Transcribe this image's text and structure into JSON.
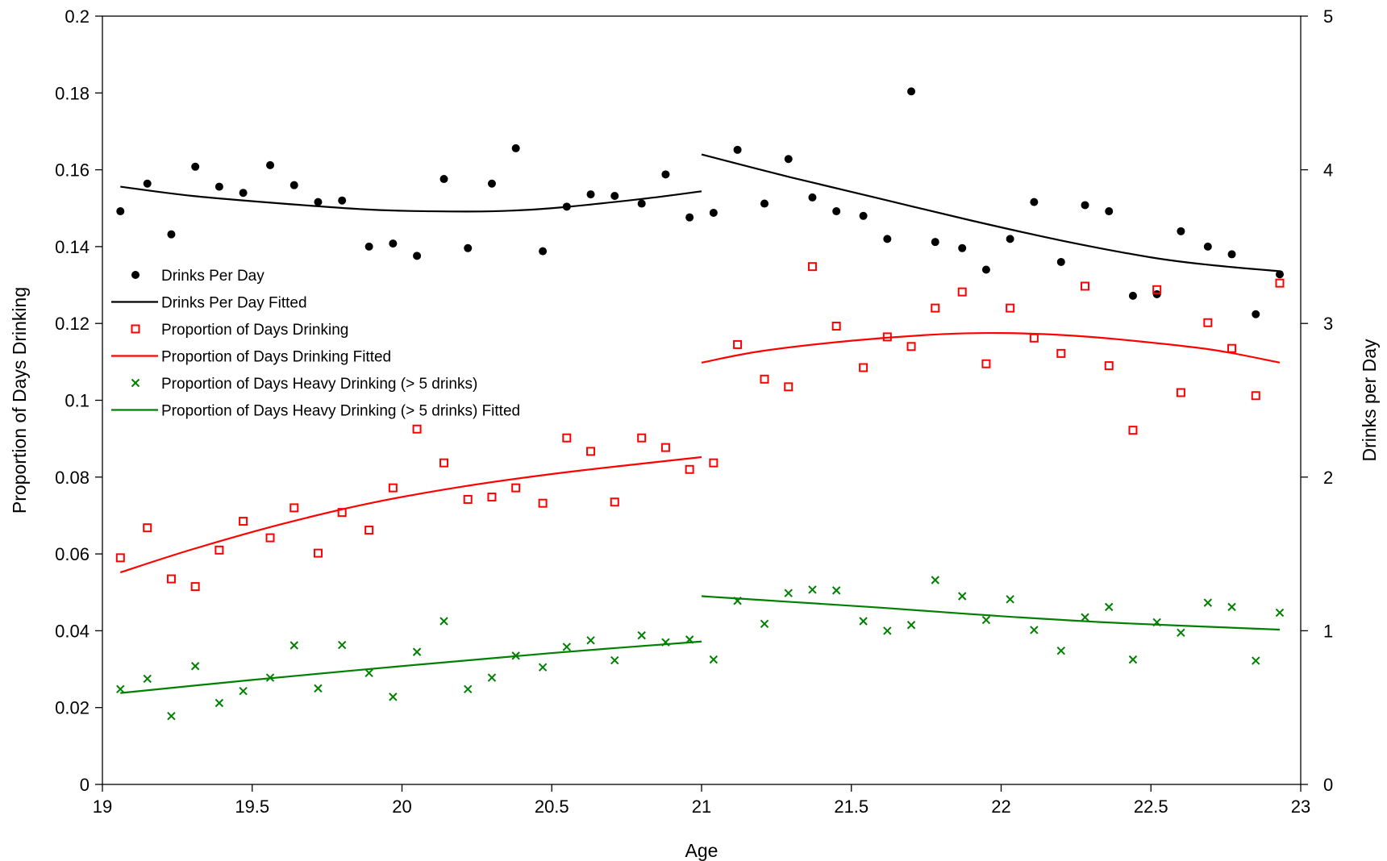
{
  "chart_data": {
    "type": "scatter",
    "xlabel": "Age",
    "ylabel": "Proportion of Days Drinking",
    "y2label": "Drinks per Day",
    "xlim": [
      19,
      23
    ],
    "ylim": [
      0,
      0.2
    ],
    "y2lim": [
      0,
      5
    ],
    "x_ticks": [
      "19",
      "19.5",
      "20",
      "20.5",
      "21",
      "21.5",
      "22",
      "22.5",
      "23"
    ],
    "y_ticks": [
      "0",
      "0.02",
      "0.04",
      "0.06",
      "0.08",
      "0.1",
      "0.12",
      "0.14",
      "0.16",
      "0.18",
      "0.2"
    ],
    "y2_ticks": [
      "0",
      "1",
      "2",
      "3",
      "4",
      "5"
    ],
    "grid": false,
    "legend_position": "left",
    "series": [
      {
        "name": "Drinks Per Day",
        "axis": "right",
        "kind": "points",
        "marker": "filled-circle",
        "color": "#000000",
        "points": [
          [
            19.06,
            3.73
          ],
          [
            19.15,
            3.91
          ],
          [
            19.23,
            3.58
          ],
          [
            19.31,
            4.02
          ],
          [
            19.39,
            3.89
          ],
          [
            19.47,
            3.85
          ],
          [
            19.56,
            4.03
          ],
          [
            19.64,
            3.9
          ],
          [
            19.72,
            3.79
          ],
          [
            19.8,
            3.8
          ],
          [
            19.89,
            3.5
          ],
          [
            19.97,
            3.52
          ],
          [
            20.05,
            3.44
          ],
          [
            20.14,
            3.94
          ],
          [
            20.22,
            3.49
          ],
          [
            20.3,
            3.91
          ],
          [
            20.38,
            4.14
          ],
          [
            20.47,
            3.47
          ],
          [
            20.55,
            3.76
          ],
          [
            20.63,
            3.84
          ],
          [
            20.71,
            3.83
          ],
          [
            20.8,
            3.78
          ],
          [
            20.88,
            3.97
          ],
          [
            20.96,
            3.69
          ],
          [
            21.04,
            3.72
          ],
          [
            21.12,
            4.13
          ],
          [
            21.21,
            3.78
          ],
          [
            21.29,
            4.07
          ],
          [
            21.37,
            3.82
          ],
          [
            21.45,
            3.73
          ],
          [
            21.54,
            3.7
          ],
          [
            21.62,
            3.55
          ],
          [
            21.7,
            4.51
          ],
          [
            21.78,
            3.53
          ],
          [
            21.87,
            3.49
          ],
          [
            21.95,
            3.35
          ],
          [
            22.03,
            3.55
          ],
          [
            22.11,
            3.79
          ],
          [
            22.2,
            3.4
          ],
          [
            22.28,
            3.77
          ],
          [
            22.36,
            3.73
          ],
          [
            22.44,
            3.18
          ],
          [
            22.52,
            3.19
          ],
          [
            22.6,
            3.6
          ],
          [
            22.69,
            3.5
          ],
          [
            22.77,
            3.45
          ],
          [
            22.85,
            3.06
          ],
          [
            22.93,
            3.32
          ]
        ]
      },
      {
        "name": "Drinks Per Day Fitted",
        "axis": "right",
        "kind": "line",
        "color": "#000000",
        "segments": [
          [
            [
              19.06,
              3.89
            ],
            [
              19.3,
              3.83
            ],
            [
              19.6,
              3.78
            ],
            [
              19.9,
              3.74
            ],
            [
              20.1,
              3.73
            ],
            [
              20.3,
              3.73
            ],
            [
              20.5,
              3.75
            ],
            [
              20.8,
              3.81
            ],
            [
              21.0,
              3.86
            ]
          ],
          [
            [
              21.0,
              4.1
            ],
            [
              21.3,
              3.95
            ],
            [
              21.6,
              3.81
            ],
            [
              21.9,
              3.67
            ],
            [
              22.2,
              3.54
            ],
            [
              22.5,
              3.43
            ],
            [
              22.7,
              3.38
            ],
            [
              22.93,
              3.34
            ]
          ]
        ]
      },
      {
        "name": "Proportion of Days Drinking",
        "axis": "left",
        "kind": "points",
        "marker": "open-square",
        "color": "#ff0000",
        "points": [
          [
            19.06,
            0.059
          ],
          [
            19.15,
            0.0668
          ],
          [
            19.23,
            0.0535
          ],
          [
            19.31,
            0.0515
          ],
          [
            19.39,
            0.061
          ],
          [
            19.47,
            0.0685
          ],
          [
            19.56,
            0.0642
          ],
          [
            19.64,
            0.072
          ],
          [
            19.72,
            0.0602
          ],
          [
            19.8,
            0.0708
          ],
          [
            19.89,
            0.0662
          ],
          [
            19.97,
            0.0772
          ],
          [
            20.05,
            0.0925
          ],
          [
            20.14,
            0.0837
          ],
          [
            20.22,
            0.0742
          ],
          [
            20.3,
            0.0748
          ],
          [
            20.38,
            0.0772
          ],
          [
            20.47,
            0.0732
          ],
          [
            20.55,
            0.0902
          ],
          [
            20.63,
            0.0867
          ],
          [
            20.71,
            0.0735
          ],
          [
            20.8,
            0.0902
          ],
          [
            20.88,
            0.0877
          ],
          [
            20.96,
            0.082
          ],
          [
            21.04,
            0.0837
          ],
          [
            21.12,
            0.1145
          ],
          [
            21.21,
            0.1055
          ],
          [
            21.29,
            0.1035
          ],
          [
            21.37,
            0.1348
          ],
          [
            21.45,
            0.1193
          ],
          [
            21.54,
            0.1085
          ],
          [
            21.62,
            0.1165
          ],
          [
            21.7,
            0.114
          ],
          [
            21.78,
            0.124
          ],
          [
            21.87,
            0.1282
          ],
          [
            21.95,
            0.1095
          ],
          [
            22.03,
            0.124
          ],
          [
            22.11,
            0.1162
          ],
          [
            22.2,
            0.1122
          ],
          [
            22.28,
            0.1297
          ],
          [
            22.36,
            0.109
          ],
          [
            22.44,
            0.0922
          ],
          [
            22.52,
            0.1288
          ],
          [
            22.6,
            0.102
          ],
          [
            22.69,
            0.1202
          ],
          [
            22.77,
            0.1135
          ],
          [
            22.85,
            0.1012
          ],
          [
            22.93,
            0.1305
          ]
        ]
      },
      {
        "name": "Proportion of Days Drinking Fitted",
        "axis": "left",
        "kind": "line",
        "color": "#ff0000",
        "segments": [
          [
            [
              19.06,
              0.0552
            ],
            [
              19.3,
              0.0612
            ],
            [
              19.6,
              0.0678
            ],
            [
              19.9,
              0.0733
            ],
            [
              20.2,
              0.0775
            ],
            [
              20.5,
              0.0808
            ],
            [
              20.8,
              0.0835
            ],
            [
              21.0,
              0.0852
            ]
          ],
          [
            [
              21.0,
              0.1098
            ],
            [
              21.2,
              0.1128
            ],
            [
              21.5,
              0.1155
            ],
            [
              21.8,
              0.1172
            ],
            [
              22.0,
              0.1175
            ],
            [
              22.2,
              0.117
            ],
            [
              22.4,
              0.1158
            ],
            [
              22.7,
              0.1132
            ],
            [
              22.93,
              0.1098
            ]
          ]
        ]
      },
      {
        "name": "Proportion of Days Heavy Drinking (> 5 drinks)",
        "axis": "left",
        "kind": "points",
        "marker": "x",
        "color": "#008000",
        "points": [
          [
            19.06,
            0.0248
          ],
          [
            19.15,
            0.0275
          ],
          [
            19.23,
            0.0178
          ],
          [
            19.31,
            0.0308
          ],
          [
            19.39,
            0.0212
          ],
          [
            19.47,
            0.0243
          ],
          [
            19.56,
            0.0278
          ],
          [
            19.64,
            0.0362
          ],
          [
            19.72,
            0.025
          ],
          [
            19.8,
            0.0363
          ],
          [
            19.89,
            0.029
          ],
          [
            19.97,
            0.0228
          ],
          [
            20.05,
            0.0345
          ],
          [
            20.14,
            0.0425
          ],
          [
            20.22,
            0.0248
          ],
          [
            20.3,
            0.0278
          ],
          [
            20.38,
            0.0335
          ],
          [
            20.47,
            0.0305
          ],
          [
            20.55,
            0.0358
          ],
          [
            20.63,
            0.0375
          ],
          [
            20.71,
            0.0323
          ],
          [
            20.8,
            0.0388
          ],
          [
            20.88,
            0.037
          ],
          [
            20.96,
            0.0377
          ],
          [
            21.04,
            0.0325
          ],
          [
            21.12,
            0.0478
          ],
          [
            21.21,
            0.0418
          ],
          [
            21.29,
            0.0498
          ],
          [
            21.37,
            0.0507
          ],
          [
            21.45,
            0.0505
          ],
          [
            21.54,
            0.0425
          ],
          [
            21.62,
            0.04
          ],
          [
            21.7,
            0.0415
          ],
          [
            21.78,
            0.0532
          ],
          [
            21.87,
            0.049
          ],
          [
            21.95,
            0.0428
          ],
          [
            22.03,
            0.0482
          ],
          [
            22.11,
            0.0402
          ],
          [
            22.2,
            0.0348
          ],
          [
            22.28,
            0.0435
          ],
          [
            22.36,
            0.0462
          ],
          [
            22.44,
            0.0325
          ],
          [
            22.52,
            0.0422
          ],
          [
            22.6,
            0.0395
          ],
          [
            22.69,
            0.0473
          ],
          [
            22.77,
            0.0462
          ],
          [
            22.85,
            0.0322
          ],
          [
            22.93,
            0.0447
          ]
        ]
      },
      {
        "name": "Proportion of Days Heavy Drinking (> 5 drinks) Fitted",
        "axis": "left",
        "kind": "line",
        "color": "#008000",
        "segments": [
          [
            [
              19.06,
              0.0238
            ],
            [
              19.5,
              0.0272
            ],
            [
              20.0,
              0.0308
            ],
            [
              20.5,
              0.0342
            ],
            [
              21.0,
              0.0372
            ]
          ],
          [
            [
              21.0,
              0.049
            ],
            [
              21.3,
              0.0475
            ],
            [
              21.6,
              0.046
            ],
            [
              22.0,
              0.0438
            ],
            [
              22.4,
              0.042
            ],
            [
              22.93,
              0.0403
            ]
          ]
        ]
      }
    ]
  }
}
